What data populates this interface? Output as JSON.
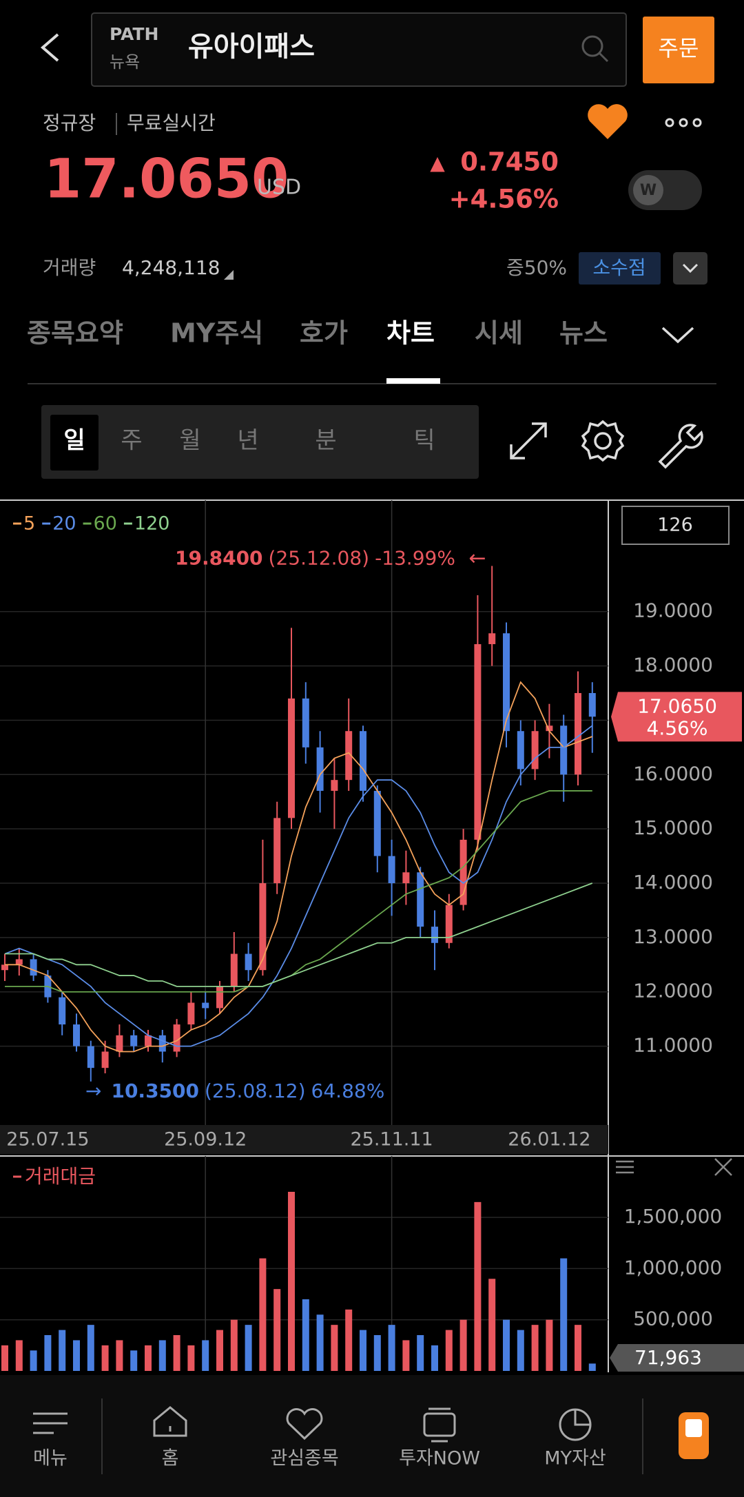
{
  "header": {
    "ticker": "PATH",
    "market": "뉴욕",
    "name": "유아이패스",
    "order": "주문"
  },
  "quote": {
    "session": "정규장",
    "feed": "무료실시간",
    "price": "17.0650",
    "currency": "USD",
    "arrow": "▲",
    "change": "0.7450",
    "change_pct": "+4.56%",
    "toggle": "W",
    "volume_label": "거래량",
    "volume": "4,248,118",
    "margin": "증50%",
    "fractional": "소수점"
  },
  "tabs": [
    "종목요약",
    "MY주식",
    "호가",
    "차트",
    "시세",
    "뉴스"
  ],
  "periods": [
    "일",
    "주",
    "월",
    "년",
    "분",
    "틱"
  ],
  "chart_data": {
    "type": "candlestick",
    "count": "126",
    "categories": [
      null,
      null,
      null,
      "25.07.15",
      null,
      null,
      null,
      null,
      null,
      null,
      null,
      null,
      null,
      null,
      "25.09.12",
      null,
      null,
      null,
      null,
      null,
      null,
      null,
      null,
      null,
      null,
      null,
      null,
      "25.11.11",
      null,
      null,
      null,
      null,
      null,
      null,
      null,
      null,
      null,
      null,
      "26.01.12",
      null,
      null,
      null
    ],
    "candles": [
      [
        12.4,
        12.7,
        12.2,
        12.5
      ],
      [
        12.5,
        12.8,
        12.3,
        12.6
      ],
      [
        12.6,
        12.7,
        12.2,
        12.3
      ],
      [
        12.3,
        12.4,
        11.8,
        11.9
      ],
      [
        11.9,
        12.0,
        11.2,
        11.4
      ],
      [
        11.4,
        11.6,
        10.9,
        11.0
      ],
      [
        11.0,
        11.1,
        10.35,
        10.6
      ],
      [
        10.6,
        11.1,
        10.5,
        10.9
      ],
      [
        10.9,
        11.4,
        10.8,
        11.2
      ],
      [
        11.2,
        11.3,
        10.9,
        11.0
      ],
      [
        11.0,
        11.3,
        10.9,
        11.2
      ],
      [
        11.2,
        11.3,
        10.7,
        10.9
      ],
      [
        10.9,
        11.5,
        10.8,
        11.4
      ],
      [
        11.4,
        12.0,
        11.3,
        11.8
      ],
      [
        11.8,
        12.0,
        11.5,
        11.7
      ],
      [
        11.7,
        12.2,
        11.6,
        12.1
      ],
      [
        12.1,
        13.1,
        12.0,
        12.7
      ],
      [
        12.7,
        12.9,
        12.2,
        12.4
      ],
      [
        12.4,
        14.8,
        12.3,
        14.0
      ],
      [
        14.0,
        15.5,
        13.8,
        15.2
      ],
      [
        15.2,
        18.7,
        15.0,
        17.4
      ],
      [
        17.4,
        17.7,
        16.2,
        16.5
      ],
      [
        16.5,
        16.8,
        15.3,
        15.7
      ],
      [
        15.7,
        16.3,
        15.0,
        15.9
      ],
      [
        15.9,
        17.4,
        15.7,
        16.8
      ],
      [
        16.8,
        16.9,
        15.5,
        15.7
      ],
      [
        15.7,
        15.8,
        14.2,
        14.5
      ],
      [
        14.5,
        14.8,
        13.4,
        14.0
      ],
      [
        14.0,
        14.6,
        13.6,
        14.2
      ],
      [
        14.2,
        14.3,
        13.0,
        13.2
      ],
      [
        13.2,
        13.5,
        12.4,
        12.9
      ],
      [
        12.9,
        13.8,
        12.8,
        13.6
      ],
      [
        13.6,
        15.0,
        13.5,
        14.8
      ],
      [
        14.8,
        19.3,
        14.6,
        18.4
      ],
      [
        18.4,
        19.84,
        18.0,
        18.6
      ],
      [
        18.6,
        18.8,
        16.5,
        16.8
      ],
      [
        16.8,
        17.0,
        15.8,
        16.1
      ],
      [
        16.1,
        17.0,
        15.9,
        16.8
      ],
      [
        16.8,
        17.3,
        16.3,
        16.9
      ],
      [
        16.9,
        17.1,
        15.5,
        16.0
      ],
      [
        16.0,
        17.9,
        15.8,
        17.5
      ],
      [
        17.5,
        17.7,
        16.4,
        17.065
      ]
    ],
    "up_color": "#e8575e",
    "down_color": "#4a7fe0",
    "series": [
      {
        "name": "5",
        "color": "#f5a25a",
        "values": [
          12.5,
          12.5,
          12.4,
          12.3,
          12.0,
          11.7,
          11.3,
          11.0,
          10.9,
          10.9,
          11.0,
          11.0,
          11.1,
          11.3,
          11.4,
          11.6,
          11.9,
          12.1,
          12.6,
          13.3,
          14.5,
          15.4,
          16.0,
          16.3,
          16.4,
          16.1,
          15.7,
          15.3,
          14.8,
          14.2,
          13.8,
          13.6,
          13.8,
          14.7,
          15.9,
          17.0,
          17.7,
          17.4,
          16.8,
          16.5,
          16.6,
          16.7
        ]
      },
      {
        "name": "20",
        "color": "#5b8de8",
        "values": [
          12.7,
          12.8,
          12.7,
          12.6,
          12.5,
          12.3,
          12.1,
          11.8,
          11.6,
          11.4,
          11.2,
          11.1,
          11.0,
          11.0,
          11.1,
          11.2,
          11.4,
          11.6,
          11.9,
          12.3,
          12.8,
          13.4,
          14.0,
          14.6,
          15.2,
          15.6,
          15.9,
          15.9,
          15.7,
          15.3,
          14.7,
          14.2,
          14.0,
          14.2,
          14.8,
          15.5,
          16.0,
          16.3,
          16.5,
          16.5,
          16.7,
          16.9
        ]
      },
      {
        "name": "60",
        "color": "#6aa84f",
        "values": [
          12.1,
          12.1,
          12.1,
          12.1,
          12.0,
          12.0,
          12.0,
          12.0,
          12.0,
          12.0,
          12.0,
          12.0,
          12.0,
          12.0,
          12.0,
          12.0,
          12.0,
          12.1,
          12.1,
          12.2,
          12.3,
          12.5,
          12.6,
          12.8,
          13.0,
          13.2,
          13.4,
          13.6,
          13.8,
          13.9,
          14.0,
          14.1,
          14.3,
          14.6,
          14.9,
          15.2,
          15.5,
          15.6,
          15.7,
          15.7,
          15.7,
          15.7
        ]
      },
      {
        "name": "120",
        "color": "#8fd18f",
        "values": [
          12.7,
          12.7,
          12.7,
          12.6,
          12.6,
          12.5,
          12.5,
          12.4,
          12.3,
          12.3,
          12.2,
          12.2,
          12.1,
          12.1,
          12.1,
          12.1,
          12.1,
          12.1,
          12.1,
          12.2,
          12.3,
          12.4,
          12.5,
          12.6,
          12.7,
          12.8,
          12.9,
          12.9,
          13.0,
          13.0,
          13.0,
          13.0,
          13.1,
          13.2,
          13.3,
          13.4,
          13.5,
          13.6,
          13.7,
          13.8,
          13.9,
          14.0
        ]
      }
    ],
    "ylim": [
      9.6,
      21.0
    ],
    "yticks": [
      {
        "value": 19,
        "label": "19.0000"
      },
      {
        "value": 18,
        "label": "18.0000"
      },
      {
        "value": 17,
        "label": "17.0000"
      },
      {
        "value": 16,
        "label": "16.0000"
      },
      {
        "value": 15,
        "label": "15.0000"
      },
      {
        "value": 14,
        "label": "14.0000"
      },
      {
        "value": 13,
        "label": "13.0000"
      },
      {
        "value": 12,
        "label": "12.0000"
      },
      {
        "value": 11,
        "label": "11.0000"
      }
    ],
    "grid": true,
    "max": {
      "value": 19.84,
      "label": "19.8400",
      "date": "(25.12.08)",
      "change": "-13.99%",
      "arrow": "←"
    },
    "min": {
      "value": 10.35,
      "label": "10.3500",
      "date": "(25.08.12)",
      "change": "64.88%",
      "arrow": "→"
    },
    "current": {
      "value": 17.065,
      "label": "17.0650",
      "change": "4.56%"
    },
    "volume_title": "거래대금",
    "volume_color": "#e8575e",
    "volume": [
      250000,
      300000,
      200000,
      350000,
      400000,
      300000,
      450000,
      250000,
      300000,
      200000,
      250000,
      300000,
      350000,
      250000,
      300000,
      400000,
      500000,
      450000,
      1100000,
      800000,
      1750000,
      700000,
      550000,
      450000,
      600000,
      400000,
      350000,
      450000,
      300000,
      350000,
      250000,
      400000,
      500000,
      1650000,
      900000,
      500000,
      400000,
      450000,
      500000,
      1100000,
      450000,
      71963
    ],
    "volume_ylim": [
      0,
      2100000
    ],
    "volume_yticks": [
      {
        "value": 1500000,
        "label": "1,500,000"
      },
      {
        "value": 1000000,
        "label": "1,000,000"
      },
      {
        "value": 500000,
        "label": "500,000"
      }
    ],
    "volume_current": {
      "value": 71963,
      "label": "71,963"
    }
  },
  "nav": [
    "메뉴",
    "홈",
    "관심종목",
    "투자NOW",
    "MY자산"
  ]
}
